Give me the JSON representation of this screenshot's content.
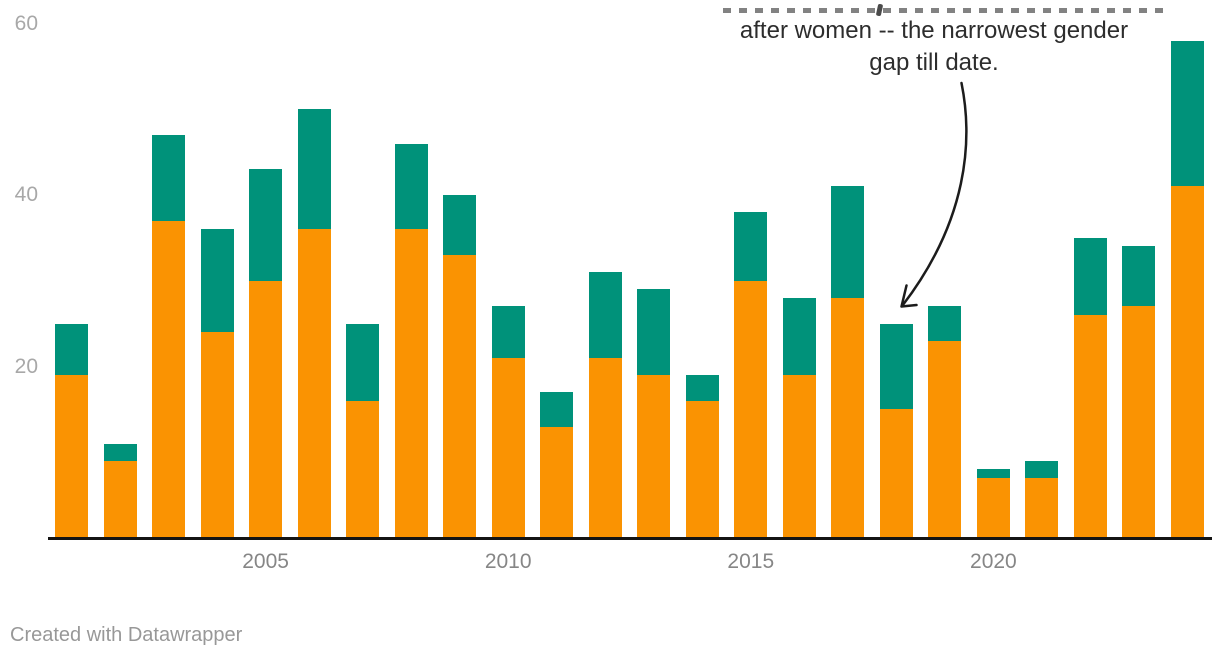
{
  "annotation": {
    "line1": "after women -- the narrowest gender",
    "line2": "gap till date.",
    "arrow_points_to_bar": "2018"
  },
  "attribution": "Created with Datawrapper",
  "colors": {
    "orange": "#fa9302",
    "green": "#00927a",
    "axis_line": "#141414",
    "y_tick_text": "#a8a8a8",
    "x_tick_text": "#868686",
    "annotation_text": "#2d2d2d",
    "arrow": "#1c1c1c",
    "attribution_text": "#989898"
  },
  "chart_data": {
    "type": "bar",
    "stacked": true,
    "orientation": "vertical",
    "x": [
      2001,
      2002,
      2003,
      2004,
      2005,
      2006,
      2007,
      2008,
      2009,
      2010,
      2011,
      2012,
      2013,
      2014,
      2015,
      2016,
      2017,
      2018,
      2019,
      2020,
      2021,
      2022,
      2023,
      2024
    ],
    "series": [
      {
        "name": "bottom-segment-orange",
        "color": "#fa9302",
        "values": [
          19,
          9,
          37,
          24,
          30,
          36,
          16,
          36,
          33,
          21,
          13,
          21,
          19,
          16,
          30,
          19,
          28,
          15,
          23,
          7,
          7,
          26,
          27,
          41
        ]
      },
      {
        "name": "top-segment-green",
        "color": "#00927a",
        "values": [
          6,
          2,
          10,
          12,
          13,
          14,
          9,
          10,
          7,
          6,
          4,
          10,
          10,
          3,
          8,
          9,
          13,
          10,
          4,
          1,
          2,
          9,
          7,
          17
        ]
      }
    ],
    "totals": [
      25,
      11,
      47,
      36,
      43,
      50,
      25,
      46,
      40,
      27,
      17,
      31,
      29,
      19,
      38,
      28,
      41,
      25,
      27,
      8,
      9,
      35,
      34,
      58
    ],
    "ylim": [
      0,
      60
    ],
    "yticks": [
      20,
      40,
      60
    ],
    "xticks": [
      2005,
      2010,
      2015,
      2020
    ],
    "grid": false,
    "legend": null,
    "annotation": "after women -- the narrowest gender gap till date."
  }
}
